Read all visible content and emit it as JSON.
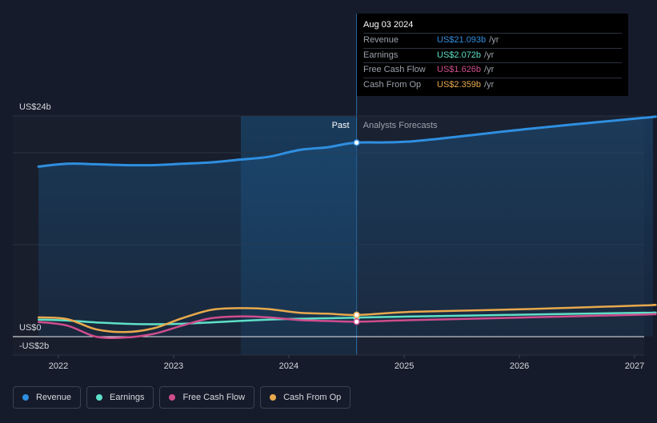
{
  "chart_data": {
    "type": "line",
    "y_axis_labels": [
      "US$24b",
      "US$0",
      "-US$2b"
    ],
    "ylim": [
      -2,
      24
    ],
    "x_ticks": [
      "2022",
      "2023",
      "2024",
      "2025",
      "2026",
      "2027"
    ],
    "past_label": "Past",
    "forecast_label": "Analysts Forecasts",
    "divider_date": "2024-08-03",
    "grid": true,
    "series": [
      {
        "name": "Revenue",
        "color": "#2f8fe0",
        "points": [
          [
            "2021-10-30",
            18.5
          ],
          [
            "2022-01-29",
            18.8
          ],
          [
            "2022-04-30",
            18.75
          ],
          [
            "2022-07-30",
            18.65
          ],
          [
            "2022-10-29",
            18.65
          ],
          [
            "2023-01-28",
            18.8
          ],
          [
            "2023-04-29",
            18.95
          ],
          [
            "2023-07-29",
            19.25
          ],
          [
            "2023-10-28",
            19.55
          ],
          [
            "2024-02-03",
            20.3
          ],
          [
            "2024-05-04",
            20.6
          ],
          [
            "2024-08-03",
            21.093
          ],
          [
            "2025-01-31",
            21.25
          ],
          [
            "2026-01-31",
            22.6
          ],
          [
            "2027-01-31",
            23.8
          ],
          [
            "2027-02-28",
            23.9
          ]
        ]
      },
      {
        "name": "Earnings",
        "color": "#5ee0c8",
        "points": [
          [
            "2021-10-30",
            1.85
          ],
          [
            "2022-01-29",
            1.75
          ],
          [
            "2022-04-30",
            1.55
          ],
          [
            "2022-07-30",
            1.4
          ],
          [
            "2022-10-29",
            1.35
          ],
          [
            "2023-01-28",
            1.4
          ],
          [
            "2023-04-29",
            1.55
          ],
          [
            "2023-07-29",
            1.7
          ],
          [
            "2023-10-28",
            1.85
          ],
          [
            "2024-02-03",
            1.95
          ],
          [
            "2024-05-04",
            2.0
          ],
          [
            "2024-08-03",
            2.072
          ],
          [
            "2025-01-31",
            2.2
          ],
          [
            "2026-01-31",
            2.4
          ],
          [
            "2027-01-31",
            2.6
          ],
          [
            "2027-02-28",
            2.62
          ]
        ]
      },
      {
        "name": "Free Cash Flow",
        "color": "#cf4d8c",
        "points": [
          [
            "2021-10-30",
            1.6
          ],
          [
            "2022-01-29",
            1.2
          ],
          [
            "2022-04-30",
            0.0
          ],
          [
            "2022-07-30",
            -0.1
          ],
          [
            "2022-10-29",
            0.3
          ],
          [
            "2023-01-28",
            1.2
          ],
          [
            "2023-04-29",
            2.0
          ],
          [
            "2023-07-29",
            2.2
          ],
          [
            "2023-10-28",
            2.1
          ],
          [
            "2024-02-03",
            1.8
          ],
          [
            "2024-05-04",
            1.7
          ],
          [
            "2024-08-03",
            1.626
          ],
          [
            "2025-01-31",
            1.8
          ],
          [
            "2026-01-31",
            2.1
          ],
          [
            "2027-01-31",
            2.4
          ],
          [
            "2027-02-28",
            2.45
          ]
        ]
      },
      {
        "name": "Cash From Op",
        "color": "#e8a94d",
        "points": [
          [
            "2021-10-30",
            2.1
          ],
          [
            "2022-01-29",
            1.9
          ],
          [
            "2022-04-30",
            0.8
          ],
          [
            "2022-07-30",
            0.5
          ],
          [
            "2022-10-29",
            0.9
          ],
          [
            "2023-01-28",
            2.0
          ],
          [
            "2023-04-29",
            2.9
          ],
          [
            "2023-07-29",
            3.1
          ],
          [
            "2023-10-28",
            3.0
          ],
          [
            "2024-02-03",
            2.6
          ],
          [
            "2024-05-04",
            2.5
          ],
          [
            "2024-08-03",
            2.359
          ],
          [
            "2025-01-31",
            2.7
          ],
          [
            "2026-01-31",
            3.0
          ],
          [
            "2027-01-31",
            3.4
          ],
          [
            "2027-02-28",
            3.45
          ]
        ]
      }
    ]
  },
  "tooltip": {
    "date": "Aug 03 2024",
    "unit": "/yr",
    "rows": [
      {
        "label": "Revenue",
        "value": "US$21.093b",
        "color": "#2f8fe0"
      },
      {
        "label": "Earnings",
        "value": "US$2.072b",
        "color": "#5ee0c8"
      },
      {
        "label": "Free Cash Flow",
        "value": "US$1.626b",
        "color": "#cf4d8c"
      },
      {
        "label": "Cash From Op",
        "value": "US$2.359b",
        "color": "#e8a94d"
      }
    ]
  },
  "legend": [
    {
      "label": "Revenue",
      "color": "#2f8fe0"
    },
    {
      "label": "Earnings",
      "color": "#5ee0c8"
    },
    {
      "label": "Free Cash Flow",
      "color": "#cf4d8c"
    },
    {
      "label": "Cash From Op",
      "color": "#e8a94d"
    }
  ]
}
